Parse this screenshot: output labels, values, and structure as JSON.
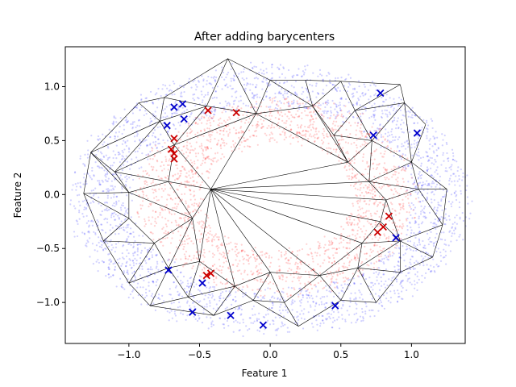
{
  "chart_data": {
    "type": "scatter",
    "title": "After adding barycenters",
    "xlabel": "Feature 1",
    "ylabel": "Feature 2",
    "xlim": [
      -1.45,
      1.38
    ],
    "ylim": [
      -1.38,
      1.37
    ],
    "xticks": [
      "−1.0",
      "−0.5",
      "0.0",
      "0.5",
      "1.0"
    ],
    "xtick_values": [
      -1.0,
      -0.5,
      0.0,
      0.5,
      1.0
    ],
    "yticks": [
      "−1.0",
      "−0.5",
      "0.0",
      "0.5",
      "1.0"
    ],
    "ytick_values": [
      -1.0,
      -0.5,
      0.0,
      0.5,
      1.0
    ],
    "grid": false,
    "colors": {
      "outer_points": "#0000ff",
      "inner_points": "#ff0000",
      "blue_markers": "#0000cc",
      "red_markers": "#cc0000",
      "mesh": "#000000"
    },
    "outer_ring": {
      "center": [
        0.0,
        -0.05
      ],
      "rx": [
        1.0,
        1.4
      ],
      "ry": [
        0.85,
        1.25
      ]
    },
    "inner_ring": {
      "center": [
        0.05,
        -0.02
      ],
      "rx": [
        0.55,
        0.98
      ],
      "ry": [
        0.52,
        0.92
      ]
    },
    "mesh_vertices": [
      [
        -0.3,
        1.26
      ],
      [
        0.0,
        1.06
      ],
      [
        0.25,
        1.06
      ],
      [
        0.5,
        1.05
      ],
      [
        0.92,
        1.02
      ],
      [
        0.3,
        0.82
      ],
      [
        -0.1,
        0.75
      ],
      [
        -0.45,
        0.82
      ],
      [
        -0.75,
        0.9
      ],
      [
        -0.93,
        0.85
      ],
      [
        -1.27,
        0.39
      ],
      [
        -1.1,
        0.21
      ],
      [
        -0.78,
        0.68
      ],
      [
        -0.68,
        0.46
      ],
      [
        -0.72,
        0.12
      ],
      [
        -1.0,
        0.02
      ],
      [
        -1.32,
        0.01
      ],
      [
        -0.42,
        0.05
      ],
      [
        -0.55,
        -0.22
      ],
      [
        -1.0,
        -0.22
      ],
      [
        -1.18,
        -0.43
      ],
      [
        -0.82,
        -0.45
      ],
      [
        -0.72,
        -0.68
      ],
      [
        -0.5,
        -0.62
      ],
      [
        -1.0,
        -0.82
      ],
      [
        -0.85,
        -1.03
      ],
      [
        -0.58,
        -0.95
      ],
      [
        -0.4,
        -1.12
      ],
      [
        -0.25,
        -0.85
      ],
      [
        -0.12,
        -0.98
      ],
      [
        0.0,
        -0.72
      ],
      [
        0.1,
        -1.0
      ],
      [
        0.2,
        -1.22
      ],
      [
        0.35,
        -0.75
      ],
      [
        0.5,
        -0.98
      ],
      [
        0.62,
        -0.68
      ],
      [
        0.75,
        -1.0
      ],
      [
        0.92,
        -0.72
      ],
      [
        0.92,
        -0.43
      ],
      [
        1.15,
        -0.58
      ],
      [
        1.22,
        -0.28
      ],
      [
        1.25,
        0.05
      ],
      [
        1.05,
        0.05
      ],
      [
        0.82,
        -0.05
      ],
      [
        0.7,
        0.12
      ],
      [
        0.55,
        0.3
      ],
      [
        0.45,
        0.55
      ],
      [
        0.72,
        0.5
      ],
      [
        1.0,
        0.3
      ],
      [
        1.1,
        0.65
      ],
      [
        0.95,
        0.85
      ],
      [
        0.6,
        0.78
      ],
      [
        0.78,
        -0.25
      ],
      [
        0.65,
        -0.45
      ]
    ],
    "mesh_edges": [
      [
        0,
        1
      ],
      [
        1,
        2
      ],
      [
        2,
        3
      ],
      [
        3,
        4
      ],
      [
        0,
        7
      ],
      [
        0,
        6
      ],
      [
        1,
        6
      ],
      [
        2,
        5
      ],
      [
        1,
        5
      ],
      [
        5,
        6
      ],
      [
        3,
        5
      ],
      [
        3,
        51
      ],
      [
        4,
        51
      ],
      [
        4,
        50
      ],
      [
        50,
        51
      ],
      [
        7,
        6
      ],
      [
        7,
        8
      ],
      [
        8,
        9
      ],
      [
        0,
        8
      ],
      [
        9,
        10
      ],
      [
        10,
        11
      ],
      [
        9,
        12
      ],
      [
        8,
        12
      ],
      [
        12,
        13
      ],
      [
        7,
        12
      ],
      [
        7,
        13
      ],
      [
        6,
        13
      ],
      [
        10,
        12
      ],
      [
        11,
        12
      ],
      [
        11,
        13
      ],
      [
        13,
        14
      ],
      [
        11,
        14
      ],
      [
        11,
        15
      ],
      [
        10,
        15
      ],
      [
        10,
        16
      ],
      [
        15,
        16
      ],
      [
        14,
        15
      ],
      [
        14,
        17
      ],
      [
        13,
        17
      ],
      [
        6,
        17
      ],
      [
        17,
        18
      ],
      [
        14,
        18
      ],
      [
        15,
        18
      ],
      [
        15,
        19
      ],
      [
        16,
        19
      ],
      [
        19,
        20
      ],
      [
        16,
        20
      ],
      [
        19,
        21
      ],
      [
        18,
        21
      ],
      [
        20,
        21
      ],
      [
        21,
        22
      ],
      [
        18,
        22
      ],
      [
        18,
        23
      ],
      [
        22,
        23
      ],
      [
        20,
        24
      ],
      [
        21,
        24
      ],
      [
        22,
        24
      ],
      [
        24,
        25
      ],
      [
        22,
        25
      ],
      [
        22,
        26
      ],
      [
        25,
        26
      ],
      [
        23,
        26
      ],
      [
        26,
        27
      ],
      [
        25,
        27
      ],
      [
        26,
        28
      ],
      [
        23,
        28
      ],
      [
        27,
        28
      ],
      [
        28,
        29
      ],
      [
        27,
        29
      ],
      [
        28,
        30
      ],
      [
        29,
        30
      ],
      [
        29,
        31
      ],
      [
        30,
        31
      ],
      [
        31,
        32
      ],
      [
        29,
        32
      ],
      [
        30,
        33
      ],
      [
        31,
        33
      ],
      [
        32,
        34
      ],
      [
        33,
        34
      ],
      [
        33,
        35
      ],
      [
        34,
        35
      ],
      [
        34,
        36
      ],
      [
        35,
        36
      ],
      [
        35,
        37
      ],
      [
        36,
        37
      ],
      [
        37,
        38
      ],
      [
        35,
        38
      ],
      [
        37,
        39
      ],
      [
        38,
        39
      ],
      [
        39,
        40
      ],
      [
        38,
        40
      ],
      [
        38,
        52
      ],
      [
        52,
        53
      ],
      [
        35,
        53
      ],
      [
        38,
        53
      ],
      [
        40,
        41
      ],
      [
        40,
        42
      ],
      [
        41,
        42
      ],
      [
        42,
        43
      ],
      [
        38,
        43
      ],
      [
        52,
        43
      ],
      [
        43,
        44
      ],
      [
        42,
        44
      ],
      [
        44,
        45
      ],
      [
        45,
        46
      ],
      [
        44,
        47
      ],
      [
        45,
        47
      ],
      [
        46,
        47
      ],
      [
        47,
        48
      ],
      [
        42,
        48
      ],
      [
        41,
        48
      ],
      [
        48,
        49
      ],
      [
        49,
        50
      ],
      [
        47,
        50
      ],
      [
        47,
        51
      ],
      [
        46,
        51
      ],
      [
        46,
        5
      ],
      [
        5,
        45
      ],
      [
        6,
        45
      ],
      [
        17,
        45
      ],
      [
        17,
        44
      ],
      [
        17,
        43
      ],
      [
        17,
        52
      ],
      [
        17,
        53
      ],
      [
        17,
        33
      ],
      [
        17,
        30
      ],
      [
        17,
        28
      ],
      [
        17,
        23
      ],
      [
        48,
        50
      ],
      [
        44,
        48
      ],
      [
        33,
        53
      ]
    ],
    "blue_markers": [
      [
        -0.68,
        0.81
      ],
      [
        -0.62,
        0.84
      ],
      [
        -0.73,
        0.64
      ],
      [
        -0.61,
        0.7
      ],
      [
        0.78,
        0.94
      ],
      [
        1.04,
        0.57
      ],
      [
        0.73,
        0.55
      ],
      [
        -0.55,
        -1.09
      ],
      [
        -0.28,
        -1.12
      ],
      [
        -0.05,
        -1.21
      ],
      [
        0.46,
        -1.03
      ],
      [
        0.89,
        -0.4
      ],
      [
        -0.72,
        -0.7
      ],
      [
        -0.48,
        -0.82
      ]
    ],
    "red_markers": [
      [
        -0.44,
        0.78
      ],
      [
        -0.24,
        0.76
      ],
      [
        -0.68,
        0.52
      ],
      [
        -0.7,
        0.42
      ],
      [
        -0.68,
        0.38
      ],
      [
        -0.68,
        0.33
      ],
      [
        0.84,
        -0.2
      ],
      [
        0.8,
        -0.3
      ],
      [
        0.76,
        -0.35
      ],
      [
        -0.45,
        -0.75
      ],
      [
        -0.42,
        -0.73
      ]
    ]
  }
}
